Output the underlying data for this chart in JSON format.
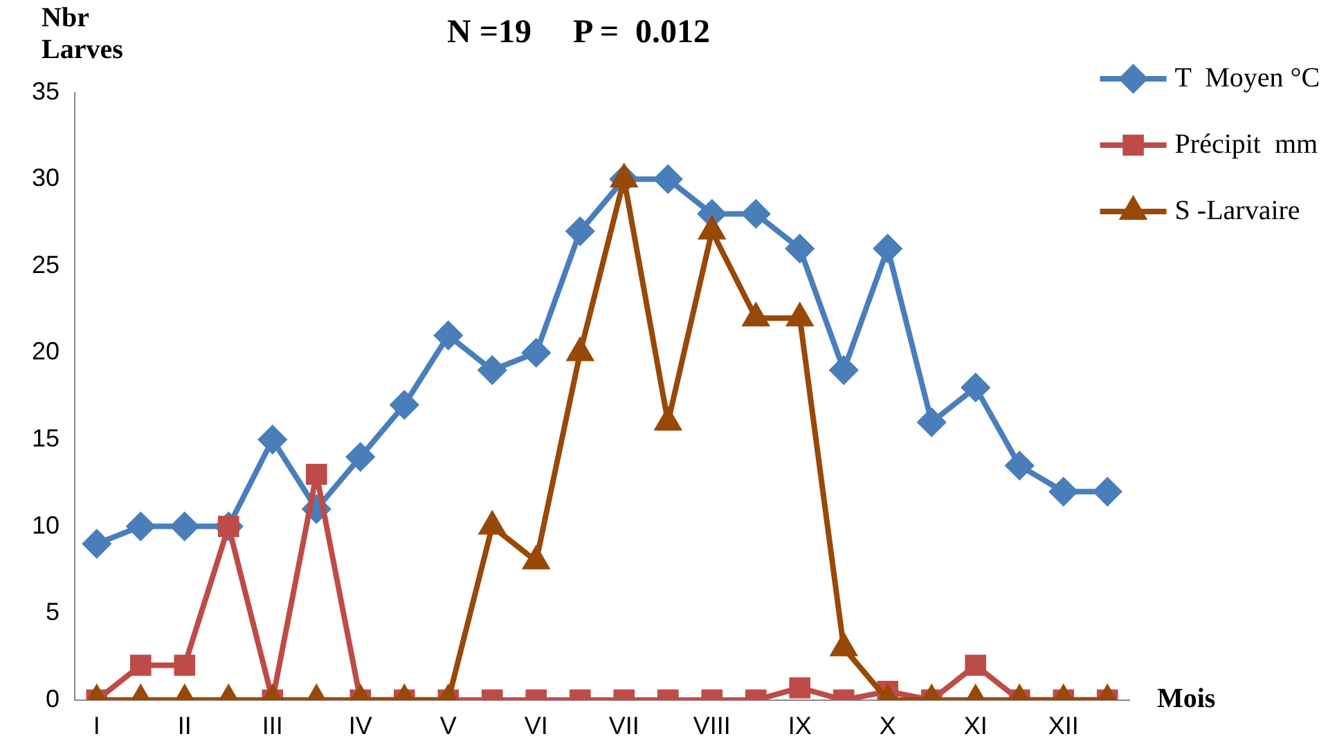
{
  "chart_data": {
    "type": "line",
    "title": "N =19     P =  0.012",
    "ylabel": "Nbr Larves",
    "xlabel": "Mois",
    "categories": [
      "I",
      null,
      "II",
      null,
      "III",
      null,
      "IV",
      null,
      "V",
      null,
      "VI",
      null,
      "VII",
      null,
      "VIII",
      null,
      "IX",
      null,
      "X",
      null,
      "XI",
      null,
      "XII",
      null
    ],
    "series": [
      {
        "name": "T  Moyen °C",
        "color": "#4a7ebb",
        "marker": "diamond",
        "values": [
          9,
          10,
          10,
          10,
          15,
          11,
          14,
          17,
          21,
          19,
          20,
          27,
          30,
          30,
          28,
          28,
          26,
          19,
          26,
          16,
          18,
          13.5,
          12,
          12
        ]
      },
      {
        "name": "Précipit  mm",
        "color": "#be4b48",
        "marker": "square",
        "values": [
          0,
          2,
          2,
          10,
          0,
          13,
          0,
          0,
          0,
          0,
          0,
          0,
          0,
          0,
          0,
          0,
          0.7,
          0,
          0.5,
          0,
          2,
          0,
          0,
          0
        ]
      },
      {
        "name": "S -Larvaire",
        "color": "#984807",
        "marker": "triangle",
        "values": [
          0,
          0,
          0,
          0,
          0,
          0,
          0,
          0,
          0,
          10,
          8,
          20,
          30,
          16,
          27,
          22,
          22,
          3,
          0,
          0,
          0,
          0,
          0,
          0
        ]
      }
    ],
    "ylim": [
      0,
      35
    ],
    "yticks": [
      0,
      5,
      10,
      15,
      20,
      25,
      30,
      35
    ],
    "grid": false,
    "legend": "top right"
  }
}
